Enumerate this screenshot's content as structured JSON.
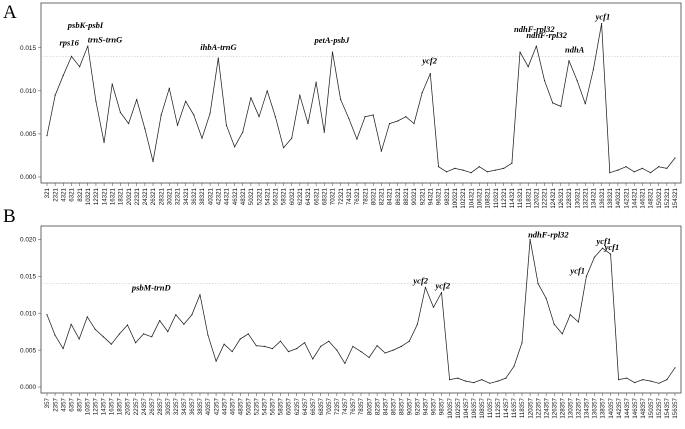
{
  "chart_data": [
    {
      "panel_label": "A",
      "type": "line",
      "title": "",
      "xlabel": "",
      "ylabel": "",
      "ylim": [
        0,
        0.0195
      ],
      "yticks": [
        0.0,
        0.005,
        0.01,
        0.015
      ],
      "ytick_labels": [
        "0.000",
        "0.005",
        "0.010",
        "0.015"
      ],
      "threshold": 0.014,
      "xtick_labels": [
        "321",
        "2321",
        "4321",
        "6321",
        "8321",
        "10321",
        "12321",
        "14321",
        "16321",
        "18321",
        "20321",
        "22321",
        "24321",
        "26321",
        "28321",
        "30321",
        "32321",
        "34321",
        "36321",
        "38321",
        "40321",
        "42321",
        "44321",
        "46321",
        "48321",
        "50321",
        "52321",
        "54321",
        "56321",
        "58321",
        "60321",
        "62321",
        "64321",
        "66321",
        "68321",
        "70321",
        "72321",
        "74321",
        "76321",
        "78321",
        "80321",
        "82321",
        "84321",
        "86321",
        "88321",
        "90321",
        "92321",
        "94321",
        "96321",
        "98321",
        "100321",
        "102321",
        "104321",
        "106321",
        "108321",
        "110321",
        "112321",
        "114321",
        "116321",
        "118321",
        "120321",
        "122321",
        "124321",
        "126321",
        "128321",
        "130321",
        "132321",
        "134321",
        "136321",
        "138321",
        "140321",
        "142321",
        "144321",
        "146321",
        "148321",
        "150321",
        "152321",
        "154321"
      ],
      "x": [
        321,
        2321,
        4321,
        6321,
        8321,
        10321,
        12321,
        14321,
        16321,
        18321,
        20321,
        22321,
        24321,
        26321,
        28321,
        30321,
        32321,
        34321,
        36321,
        38321,
        40321,
        42321,
        44321,
        46321,
        48321,
        50321,
        52321,
        54321,
        56321,
        58321,
        60321,
        62321,
        64321,
        66321,
        68321,
        70321,
        72321,
        74321,
        76321,
        78321,
        80321,
        82321,
        84321,
        86321,
        88321,
        90321,
        92321,
        94321,
        96321,
        98321,
        100321,
        102321,
        104321,
        106321,
        108321,
        110321,
        112321,
        114321,
        116321,
        118321,
        120321,
        122321,
        124321,
        126321,
        128321,
        130321,
        132321,
        134321,
        136321,
        138321,
        140321,
        142321,
        144321,
        146321,
        148321,
        150321,
        152321,
        154321
      ],
      "values": [
        0.0048,
        0.0095,
        0.0118,
        0.014,
        0.0128,
        0.0152,
        0.0088,
        0.004,
        0.0108,
        0.0075,
        0.0062,
        0.009,
        0.0056,
        0.0018,
        0.0072,
        0.0103,
        0.006,
        0.0088,
        0.0072,
        0.0045,
        0.0074,
        0.0138,
        0.006,
        0.0035,
        0.0052,
        0.0092,
        0.007,
        0.01,
        0.007,
        0.0034,
        0.0045,
        0.0095,
        0.0062,
        0.011,
        0.0052,
        0.0145,
        0.009,
        0.0068,
        0.0044,
        0.007,
        0.0072,
        0.003,
        0.0062,
        0.0065,
        0.007,
        0.0062,
        0.0098,
        0.012,
        0.0012,
        0.0006,
        0.001,
        0.0008,
        0.0005,
        0.0012,
        0.0006,
        0.0008,
        0.001,
        0.0016,
        0.0145,
        0.0128,
        0.0152,
        0.0112,
        0.0086,
        0.0082,
        0.0135,
        0.0112,
        0.0085,
        0.0125,
        0.0178,
        0.0005,
        0.0008,
        0.0012,
        0.0006,
        0.001,
        0.0005,
        0.0012,
        0.001,
        0.0022
      ],
      "annotations": [
        {
          "text": "rps16",
          "x": 6321,
          "y": 0.014
        },
        {
          "text": "psbK-psbI",
          "x": 10321,
          "y": 0.0152
        },
        {
          "text": "trnS-trnG",
          "x": 10321,
          "y": 0.0148
        },
        {
          "text": "ihbA-trnG",
          "x": 42321,
          "y": 0.0138
        },
        {
          "text": "petA-psbJ",
          "x": 70321,
          "y": 0.0145
        },
        {
          "text": "ycf2",
          "x": 94321,
          "y": 0.012
        },
        {
          "text": "ndhF-rpl32",
          "x": 116321,
          "y": 0.0145
        },
        {
          "text": "ndhF-rpl32",
          "x": 120321,
          "y": 0.0152
        },
        {
          "text": "ndhA",
          "x": 128321,
          "y": 0.0135
        },
        {
          "text": "ycf1",
          "x": 136321,
          "y": 0.0178
        }
      ]
    },
    {
      "panel_label": "B",
      "type": "line",
      "title": "",
      "xlabel": "",
      "ylabel": "",
      "ylim": [
        0,
        0.021
      ],
      "yticks": [
        0.0,
        0.005,
        0.01,
        0.015,
        0.02
      ],
      "ytick_labels": [
        "0.000",
        "0.005",
        "0.010",
        "0.015",
        "0.020"
      ],
      "threshold": 0.014,
      "xtick_labels": [
        "357",
        "2357",
        "4357",
        "6357",
        "8357",
        "10357",
        "12357",
        "14357",
        "16357",
        "18357",
        "20357",
        "22357",
        "24357",
        "26357",
        "28357",
        "30357",
        "32357",
        "34357",
        "36357",
        "38357",
        "40357",
        "42357",
        "44357",
        "46357",
        "48357",
        "50357",
        "52357",
        "54357",
        "56357",
        "58357",
        "60357",
        "62357",
        "64357",
        "66357",
        "68357",
        "70357",
        "72357",
        "74357",
        "76357",
        "78357",
        "80357",
        "82357",
        "84357",
        "86357",
        "88357",
        "90357",
        "92357",
        "94357",
        "96357",
        "98357",
        "100357",
        "102357",
        "104357",
        "106357",
        "108357",
        "110357",
        "112357",
        "114357",
        "116357",
        "118357",
        "120357",
        "122357",
        "124357",
        "126357",
        "128357",
        "130357",
        "132357",
        "134357",
        "136357",
        "138357",
        "140357",
        "142357",
        "144357",
        "146357",
        "148357",
        "150357",
        "152357",
        "154357",
        "156357"
      ],
      "x": [
        357,
        2357,
        4357,
        6357,
        8357,
        10357,
        12357,
        14357,
        16357,
        18357,
        20357,
        22357,
        24357,
        26357,
        28357,
        30357,
        32357,
        34357,
        36357,
        38357,
        40357,
        42357,
        44357,
        46357,
        48357,
        50357,
        52357,
        54357,
        56357,
        58357,
        60357,
        62357,
        64357,
        66357,
        68357,
        70357,
        72357,
        74357,
        76357,
        78357,
        80357,
        82357,
        84357,
        86357,
        88357,
        90357,
        92357,
        94357,
        96357,
        98357,
        100357,
        102357,
        104357,
        106357,
        108357,
        110357,
        112357,
        114357,
        116357,
        118357,
        120357,
        122357,
        124357,
        126357,
        128357,
        130357,
        132357,
        134357,
        136357,
        138357,
        140357,
        142357,
        144357,
        146357,
        148357,
        150357,
        152357,
        154357,
        156357
      ],
      "values": [
        0.0098,
        0.007,
        0.0052,
        0.0085,
        0.0065,
        0.0095,
        0.0078,
        0.0068,
        0.0058,
        0.0072,
        0.0084,
        0.006,
        0.0072,
        0.0068,
        0.009,
        0.0075,
        0.0098,
        0.0085,
        0.0098,
        0.0125,
        0.007,
        0.0035,
        0.0058,
        0.0048,
        0.0065,
        0.0072,
        0.0056,
        0.0055,
        0.0052,
        0.0062,
        0.0048,
        0.0052,
        0.006,
        0.0038,
        0.0055,
        0.0062,
        0.005,
        0.0032,
        0.0055,
        0.0048,
        0.004,
        0.0056,
        0.0046,
        0.005,
        0.0055,
        0.0062,
        0.0085,
        0.0135,
        0.0108,
        0.0128,
        0.001,
        0.0012,
        0.0008,
        0.0006,
        0.001,
        0.0005,
        0.0008,
        0.0012,
        0.0028,
        0.006,
        0.02,
        0.014,
        0.012,
        0.0085,
        0.0072,
        0.0098,
        0.0088,
        0.015,
        0.0176,
        0.0188,
        0.018,
        0.001,
        0.0012,
        0.0006,
        0.001,
        0.0008,
        0.0005,
        0.001,
        0.0026
      ],
      "annotations": [
        {
          "text": "psbM-trnD",
          "x": 34357,
          "y": 0.0125
        },
        {
          "text": "ycf2",
          "x": 94357,
          "y": 0.0135
        },
        {
          "text": "ycf2",
          "x": 98357,
          "y": 0.0128
        },
        {
          "text": "ndhF-rpl32",
          "x": 120357,
          "y": 0.02
        },
        {
          "text": "ycf1",
          "x": 134357,
          "y": 0.015
        },
        {
          "text": "ycf1",
          "x": 138357,
          "y": 0.0188
        },
        {
          "text": "ycf1",
          "x": 140357,
          "y": 0.018
        }
      ]
    }
  ]
}
